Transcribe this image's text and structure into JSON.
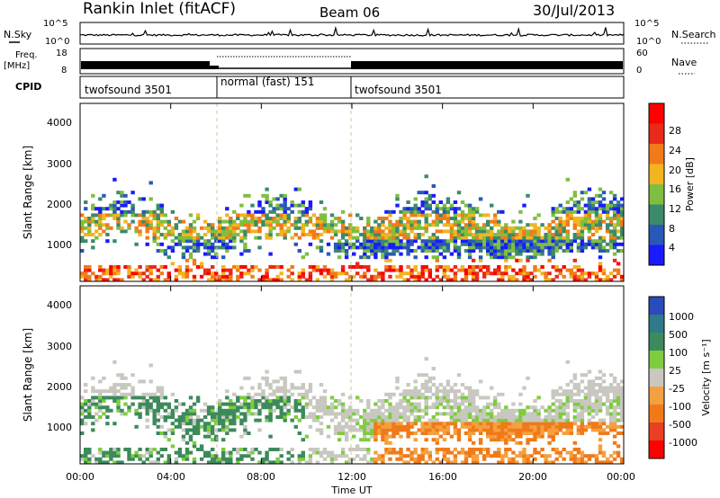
{
  "header": {
    "station": "Rankin Inlet (fitACF)",
    "beam": "Beam 06",
    "date": "30/Jul/2013"
  },
  "chart_data": [
    {
      "type": "line",
      "panel": "noise",
      "left_label": "N.Sky",
      "right_label": "N.Search",
      "left_ticks": [
        "10^5",
        "10^0"
      ],
      "right_ticks": [
        "10^5",
        "10^0"
      ]
    },
    {
      "type": "line",
      "panel": "frequency",
      "left_label": "Freq.",
      "left_unit": "[MHz]",
      "right_label": "Nave",
      "left_ticks": [
        "18",
        "8"
      ],
      "right_ticks": [
        "60",
        "0"
      ]
    },
    {
      "type": "table",
      "panel": "cpid",
      "label": "CPID",
      "segments": [
        {
          "name": "twofsound 3501",
          "start_h": 0,
          "end_h": 6
        },
        {
          "name": "normal (fast) 151",
          "start_h": 6,
          "end_h": 12
        },
        {
          "name": "twofsound 3501",
          "start_h": 12,
          "end_h": 24
        }
      ]
    },
    {
      "type": "heatmap",
      "panel": "power",
      "ylabel": "Slant Range [km]",
      "ylim": [
        180,
        4500
      ],
      "yticks": [
        "1000",
        "2000",
        "3000",
        "4000"
      ],
      "colorbar_label": "Power [dB]",
      "colorbar_ticks": [
        "4",
        "8",
        "12",
        "16",
        "20",
        "24",
        "28"
      ],
      "colors": [
        "#1a1aff",
        "#2a58b8",
        "#3b8a6c",
        "#7fbf3f",
        "#f2b51f",
        "#f27a1a",
        "#e82a1a",
        "#ff0000"
      ]
    },
    {
      "type": "heatmap",
      "panel": "velocity",
      "ylabel": "Slant Range [km]",
      "ylim": [
        180,
        4500
      ],
      "yticks": [
        "1000",
        "2000",
        "3000",
        "4000"
      ],
      "xlabel": "Time UT",
      "xticks": [
        "00:00",
        "04:00",
        "08:00",
        "12:00",
        "16:00",
        "20:00",
        "00:00"
      ],
      "colorbar_label": "Velocity [m s⁻¹]",
      "colorbar_ticks": [
        "1000",
        "500",
        "100",
        "25",
        "-25",
        "-100",
        "-500",
        "-1000"
      ],
      "colors": [
        "#2a4cb8",
        "#2f7a8a",
        "#3d8a5c",
        "#7fcc3f",
        "#c8c8c0",
        "#f5a040",
        "#f07a1a",
        "#e84020",
        "#ff0000"
      ]
    }
  ]
}
